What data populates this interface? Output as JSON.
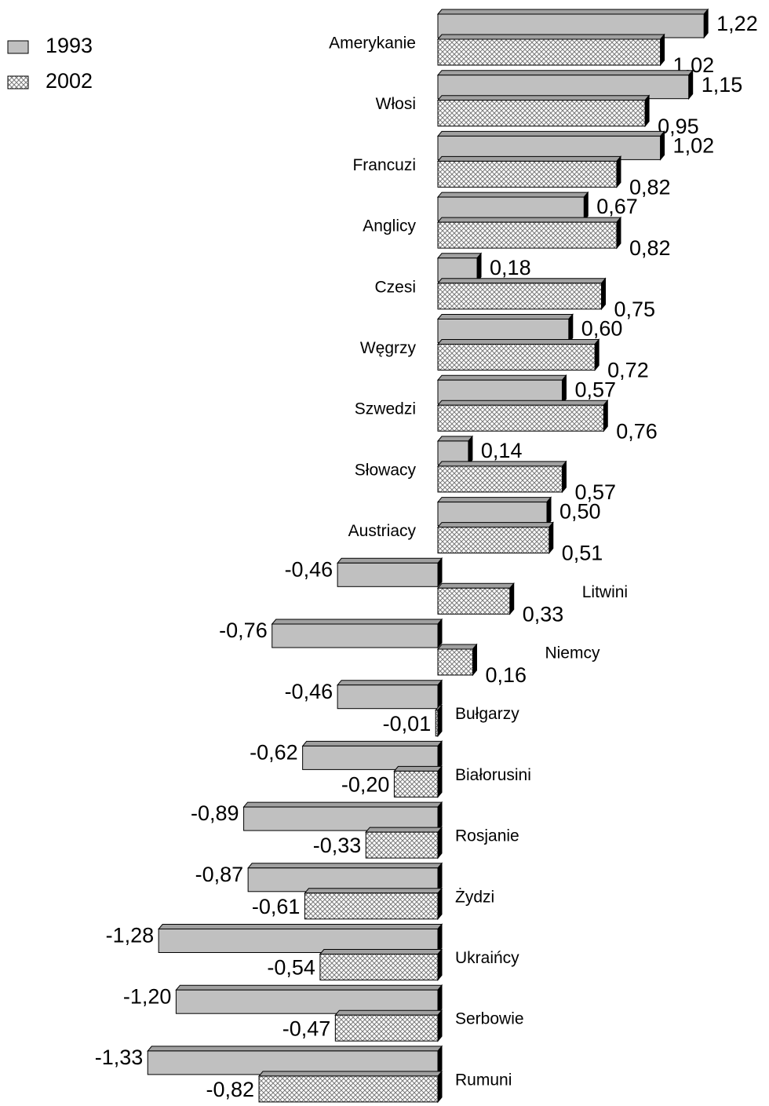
{
  "chart_data": {
    "type": "bar",
    "orientation": "horizontal",
    "categories": [
      "Amerykanie",
      "Włosi",
      "Francuzi",
      "Anglicy",
      "Czesi",
      "Węgrzy",
      "Szwedzi",
      "Słowacy",
      "Austriacy",
      "Litwini",
      "Niemcy",
      "Bułgarzy",
      "Białorusini",
      "Rosjanie",
      "Żydzi",
      "Ukraińcy",
      "Serbowie",
      "Rumuni"
    ],
    "series": [
      {
        "name": "1993",
        "color": "#c0c0c0",
        "pattern": "solid",
        "values": [
          1.22,
          1.15,
          1.02,
          0.67,
          0.18,
          0.6,
          0.57,
          0.14,
          0.5,
          -0.46,
          -0.76,
          -0.46,
          -0.62,
          -0.89,
          -0.87,
          -1.28,
          -1.2,
          -1.33
        ],
        "value_labels": [
          "1,22",
          "1,15",
          "1,02",
          "0,67",
          "0,18",
          "0,60",
          "0,57",
          "0,14",
          "0,50",
          "-0,46",
          "-0,76",
          "-0,46",
          "-0,62",
          "-0,89",
          "-0,87",
          "-1,28",
          "-1,20",
          "-1,33"
        ]
      },
      {
        "name": "2002",
        "color": "#c0c0c0",
        "pattern": "crosshatch",
        "values": [
          1.02,
          0.95,
          0.82,
          0.82,
          0.75,
          0.72,
          0.76,
          0.57,
          0.51,
          0.33,
          0.16,
          -0.01,
          -0.2,
          -0.33,
          -0.61,
          -0.54,
          -0.47,
          -0.82
        ],
        "value_labels": [
          "1,02",
          "0,95",
          "0,82",
          "0,82",
          "0,75",
          "0,72",
          "0,76",
          "0,57",
          "0,51",
          "0,33",
          "0,16",
          "-0,01",
          "-0,20",
          "-0,33",
          "-0,61",
          "-0,54",
          "-0,47",
          "-0,82"
        ]
      }
    ],
    "legend": "top-left"
  }
}
